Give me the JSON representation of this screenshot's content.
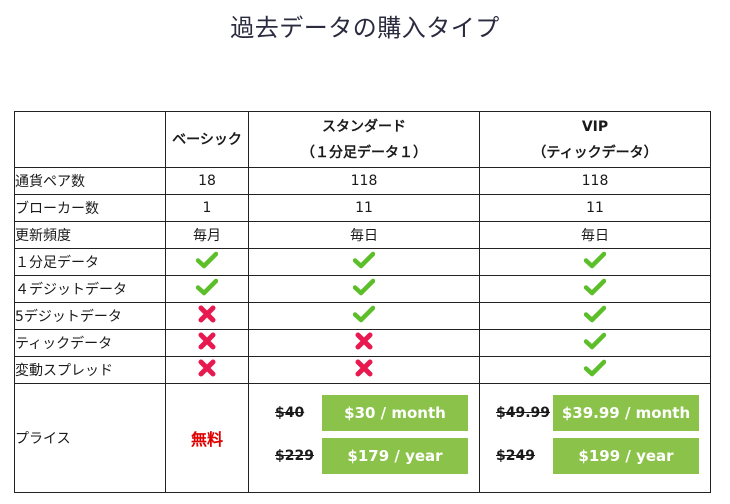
{
  "title": "過去データの購入タイプ",
  "colors": {
    "check": "#5cbf2a",
    "cross": "#e8194f",
    "button": "#8bc34a",
    "free": "#e00000"
  },
  "headers": {
    "corner": "",
    "basic": "ベーシック",
    "standard_line1": "スタンダード",
    "standard_line2": "（１分足データ１）",
    "vip_line1": "VIP",
    "vip_line2": "（ティックデータ）"
  },
  "rows": [
    {
      "label": "通貨ペア数",
      "basic": "18",
      "standard": "118",
      "vip": "118"
    },
    {
      "label": "ブローカー数",
      "basic": "1",
      "standard": "11",
      "vip": "11"
    },
    {
      "label": "更新頻度",
      "basic": "毎月",
      "standard": "毎日",
      "vip": "毎日"
    },
    {
      "label": "１分足データ",
      "basic": "check-icon",
      "standard": "check-icon",
      "vip": "check-icon"
    },
    {
      "label": "４デジットデータ",
      "basic": "check-icon",
      "standard": "check-icon",
      "vip": "check-icon"
    },
    {
      "label": "5デジットデータ",
      "basic": "cross-icon",
      "standard": "check-icon",
      "vip": "check-icon"
    },
    {
      "label": "ティックデータ",
      "basic": "cross-icon",
      "standard": "cross-icon",
      "vip": "check-icon"
    },
    {
      "label": "変動スプレッド",
      "basic": "cross-icon",
      "standard": "cross-icon",
      "vip": "check-icon"
    }
  ],
  "price": {
    "label": "プライス",
    "basic": "無料",
    "standard": {
      "monthly_old": "$40",
      "monthly_button": "$30 / month",
      "yearly_old": "$229",
      "yearly_button": "$179 / year"
    },
    "vip": {
      "monthly_old": "$49.99",
      "monthly_button": "$39.99 / month",
      "yearly_old": "$249",
      "yearly_button": "$199 / year"
    }
  }
}
